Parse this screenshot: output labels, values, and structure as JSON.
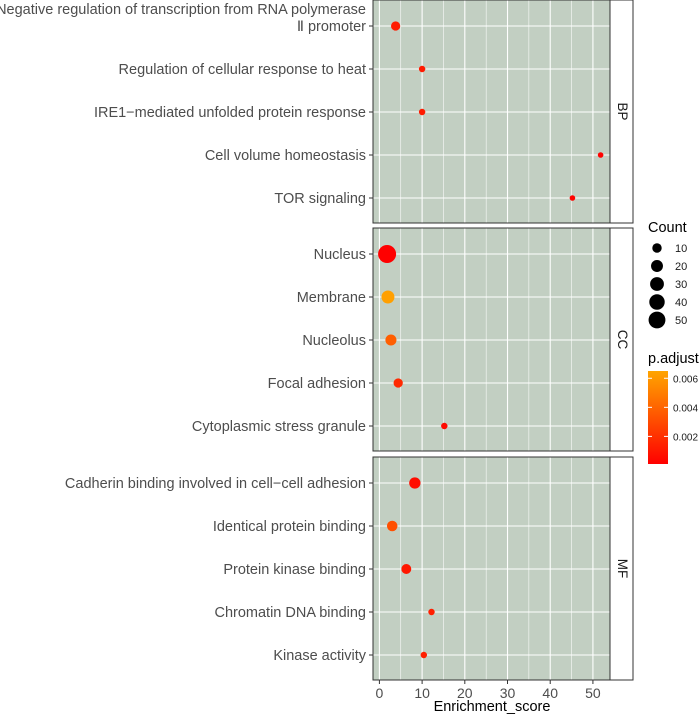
{
  "chart_data": {
    "type": "scatter",
    "xlabel": "Enrichment_score",
    "xlim": [
      -1.5,
      54
    ],
    "x_ticks": [
      0,
      10,
      20,
      30,
      40,
      50
    ],
    "panel_background": "#c2cfc2",
    "grid_color": "#ffffff",
    "facets": [
      {
        "name": "BP",
        "terms": [
          {
            "label_lines": [
              "Negative regulation of transcription from RNA polymerase",
              "Ⅱ promoter"
            ],
            "enrichment": 3.8,
            "count": 8,
            "padj": 0.0012
          },
          {
            "label_lines": [
              "Regulation of cellular response to heat"
            ],
            "enrichment": 10.0,
            "count": 2,
            "padj": 0.0011
          },
          {
            "label_lines": [
              "IRE1−mediated unfolded protein response"
            ],
            "enrichment": 10.0,
            "count": 2,
            "padj": 0.0011
          },
          {
            "label_lines": [
              "Cell volume homeostasis"
            ],
            "enrichment": 51.8,
            "count": 1,
            "padj": 0.0002
          },
          {
            "label_lines": [
              "TOR signaling"
            ],
            "enrichment": 45.2,
            "count": 1,
            "padj": 0.0002
          }
        ]
      },
      {
        "name": "CC",
        "terms": [
          {
            "label_lines": [
              "Nucleus"
            ],
            "enrichment": 1.8,
            "count": 52,
            "padj": 0.0001
          },
          {
            "label_lines": [
              "Membrane"
            ],
            "enrichment": 2.0,
            "count": 22,
            "padj": 0.0063
          },
          {
            "label_lines": [
              "Nucleolus"
            ],
            "enrichment": 2.7,
            "count": 14,
            "padj": 0.0038
          },
          {
            "label_lines": [
              "Focal adhesion"
            ],
            "enrichment": 4.4,
            "count": 8,
            "padj": 0.0017
          },
          {
            "label_lines": [
              "Cytoplasmic stress granule"
            ],
            "enrichment": 15.2,
            "count": 2,
            "padj": 0.0005
          }
        ]
      },
      {
        "name": "MF",
        "terms": [
          {
            "label_lines": [
              "Cadherin binding involved in cell−cell adhesion"
            ],
            "enrichment": 8.3,
            "count": 15,
            "padj": 0.0006
          },
          {
            "label_lines": [
              "Identical protein binding"
            ],
            "enrichment": 3.0,
            "count": 12,
            "padj": 0.0032
          },
          {
            "label_lines": [
              "Protein kinase binding"
            ],
            "enrichment": 6.3,
            "count": 10,
            "padj": 0.001
          },
          {
            "label_lines": [
              "Chromatin DNA binding"
            ],
            "enrichment": 12.2,
            "count": 2,
            "padj": 0.0013
          },
          {
            "label_lines": [
              "Kinase activity"
            ],
            "enrichment": 10.4,
            "count": 2,
            "padj": 0.0013
          }
        ]
      }
    ],
    "size_legend": {
      "title": "Count",
      "values": [
        10,
        20,
        30,
        40,
        50
      ],
      "labels": [
        "10",
        "20",
        "30",
        "40",
        "50"
      ]
    },
    "color_legend": {
      "title": "p.adjust",
      "range": [
        0.0001,
        0.0065
      ],
      "ticks": [
        0.002,
        0.004,
        0.006
      ],
      "tick_labels": [
        "0.002",
        "0.004",
        "0.006"
      ],
      "low_color": "#ff0000",
      "high_color": "#ffa500"
    }
  }
}
